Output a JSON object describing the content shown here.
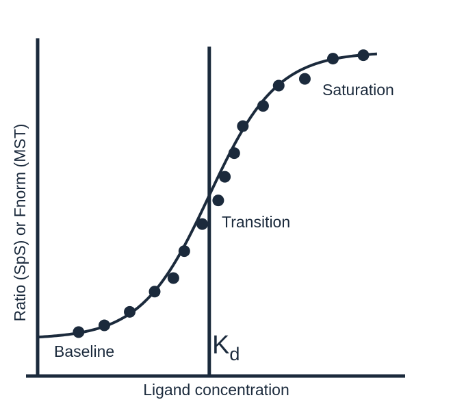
{
  "colors": {
    "ink": "#1b2a3c",
    "background": "#ffffff"
  },
  "chart_data": {
    "type": "scatter",
    "title": "",
    "xlabel": "Ligand concentration",
    "ylabel": "Ratio (SpS) or Fnorm (MST)",
    "grid": false,
    "ticks": false,
    "xlim": [
      0,
      1
    ],
    "ylim": [
      0,
      1
    ],
    "kd": {
      "label_main": "K",
      "label_sub": "d",
      "x": 0.44
    },
    "regions": [
      {
        "name": "Baseline",
        "label": "Baseline"
      },
      {
        "name": "Transition",
        "label": "Transition"
      },
      {
        "name": "Saturation",
        "label": "Saturation"
      }
    ],
    "fit": {
      "midpoint": 0.44,
      "slope": 11.5,
      "bottom": 0.11,
      "top": 0.96,
      "x_start": 0.0,
      "x_end": 0.87
    },
    "points": [
      {
        "x": 0.105,
        "y": 0.13
      },
      {
        "x": 0.171,
        "y": 0.15
      },
      {
        "x": 0.236,
        "y": 0.19
      },
      {
        "x": 0.3,
        "y": 0.25
      },
      {
        "x": 0.348,
        "y": 0.29
      },
      {
        "x": 0.376,
        "y": 0.37
      },
      {
        "x": 0.422,
        "y": 0.45
      },
      {
        "x": 0.463,
        "y": 0.52
      },
      {
        "x": 0.48,
        "y": 0.59
      },
      {
        "x": 0.504,
        "y": 0.66
      },
      {
        "x": 0.526,
        "y": 0.74
      },
      {
        "x": 0.578,
        "y": 0.8
      },
      {
        "x": 0.618,
        "y": 0.86
      },
      {
        "x": 0.685,
        "y": 0.88
      },
      {
        "x": 0.757,
        "y": 0.94
      },
      {
        "x": 0.835,
        "y": 0.95
      }
    ]
  }
}
